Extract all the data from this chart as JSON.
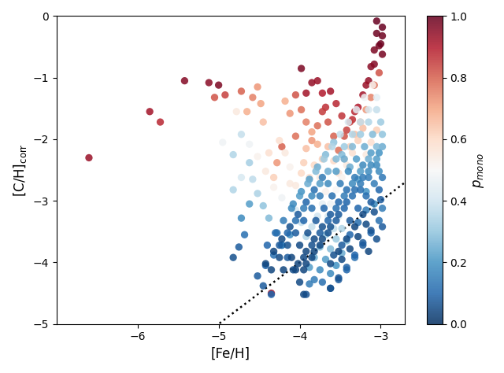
{
  "xlabel": "[Fe/H]",
  "ylabel": "[C/H]$_{\\mathrm{corr}}$",
  "colorbar_label": "$p_{mono}$",
  "xlim": [
    -7.0,
    -2.7
  ],
  "ylim": [
    -5.0,
    0.0
  ],
  "xticks": [
    -6,
    -5,
    -4,
    -3
  ],
  "yticks": [
    0,
    -1,
    -2,
    -3,
    -4,
    -5
  ],
  "dot_size": 45,
  "cmap": "RdBu_r",
  "vmin": 0.0,
  "vmax": 1.0,
  "seed": 42,
  "points": [
    [
      -6.6,
      -2.3,
      0.93
    ],
    [
      -5.85,
      -1.55,
      0.92
    ],
    [
      -5.72,
      -1.72,
      0.88
    ],
    [
      -5.42,
      -1.05,
      0.96
    ],
    [
      -5.12,
      -1.08,
      0.95
    ],
    [
      -5.05,
      -1.32,
      0.82
    ],
    [
      -5.0,
      -1.12,
      0.97
    ],
    [
      -4.92,
      -1.28,
      0.84
    ],
    [
      -4.78,
      -1.55,
      0.55
    ],
    [
      -4.72,
      -1.92,
      0.38
    ],
    [
      -4.95,
      -2.05,
      0.48
    ],
    [
      -4.82,
      -2.25,
      0.35
    ],
    [
      -4.62,
      -2.38,
      0.33
    ],
    [
      -4.58,
      -2.65,
      0.37
    ],
    [
      -4.52,
      -2.88,
      0.34
    ],
    [
      -4.45,
      -3.08,
      0.3
    ],
    [
      -4.38,
      -3.28,
      0.28
    ],
    [
      -4.28,
      -3.52,
      0.12
    ],
    [
      -4.22,
      -3.72,
      0.1
    ],
    [
      -4.15,
      -3.92,
      0.08
    ],
    [
      -4.08,
      -4.12,
      0.06
    ],
    [
      -4.0,
      -4.32,
      0.05
    ],
    [
      -3.92,
      -4.52,
      0.07
    ],
    [
      -4.68,
      -3.55,
      0.12
    ],
    [
      -4.75,
      -3.75,
      0.08
    ],
    [
      -4.82,
      -3.92,
      0.06
    ],
    [
      -4.05,
      -1.95,
      0.78
    ],
    [
      -4.12,
      -1.58,
      0.72
    ],
    [
      -4.18,
      -1.38,
      0.68
    ],
    [
      -4.22,
      -2.12,
      0.8
    ],
    [
      -4.28,
      -2.38,
      0.72
    ],
    [
      -4.32,
      -2.62,
      0.62
    ],
    [
      -4.38,
      -2.22,
      0.58
    ],
    [
      -4.45,
      -1.72,
      0.65
    ],
    [
      -4.48,
      -1.42,
      0.7
    ],
    [
      -4.52,
      -1.15,
      0.72
    ],
    [
      -4.58,
      -1.32,
      0.75
    ],
    [
      -4.65,
      -1.55,
      0.68
    ],
    [
      -4.72,
      -1.22,
      0.8
    ],
    [
      -4.12,
      -2.72,
      0.55
    ],
    [
      -4.22,
      -2.95,
      0.48
    ],
    [
      -4.32,
      -2.78,
      0.52
    ],
    [
      -4.42,
      -2.52,
      0.55
    ],
    [
      -4.52,
      -2.28,
      0.52
    ],
    [
      -4.62,
      -2.08,
      0.48
    ],
    [
      -4.72,
      -2.62,
      0.42
    ],
    [
      -4.82,
      -2.82,
      0.35
    ],
    [
      -4.62,
      -3.05,
      0.22
    ],
    [
      -4.72,
      -3.28,
      0.18
    ],
    [
      -3.98,
      -0.85,
      0.97
    ],
    [
      -3.92,
      -1.25,
      0.92
    ],
    [
      -3.85,
      -1.08,
      0.94
    ],
    [
      -3.78,
      -1.05,
      0.93
    ],
    [
      -3.72,
      -1.25,
      0.9
    ],
    [
      -3.68,
      -1.48,
      0.87
    ],
    [
      -3.62,
      -1.22,
      0.92
    ],
    [
      -3.55,
      -1.42,
      0.88
    ],
    [
      -3.48,
      -1.62,
      0.86
    ],
    [
      -3.42,
      -1.85,
      0.84
    ],
    [
      -3.35,
      -1.68,
      0.87
    ],
    [
      -3.28,
      -1.48,
      0.9
    ],
    [
      -3.22,
      -1.28,
      0.92
    ],
    [
      -3.15,
      -1.05,
      0.94
    ],
    [
      -3.08,
      -0.78,
      0.96
    ],
    [
      -3.02,
      -0.48,
      0.98
    ],
    [
      -2.98,
      -0.18,
      1.0
    ],
    [
      -3.05,
      -0.28,
      0.99
    ],
    [
      -3.08,
      -0.55,
      0.97
    ],
    [
      -3.12,
      -0.82,
      0.95
    ],
    [
      -3.18,
      -1.12,
      0.93
    ],
    [
      -2.98,
      -0.62,
      0.98
    ],
    [
      -3.0,
      -0.45,
      0.99
    ],
    [
      -3.05,
      -0.08,
      1.0
    ],
    [
      -2.98,
      -0.32,
      0.99
    ],
    [
      -3.32,
      -1.55,
      0.88
    ],
    [
      -3.38,
      -1.72,
      0.85
    ],
    [
      -3.45,
      -1.95,
      0.82
    ],
    [
      -3.52,
      -2.18,
      0.78
    ],
    [
      -3.58,
      -1.95,
      0.8
    ],
    [
      -3.65,
      -1.72,
      0.82
    ],
    [
      -3.72,
      -1.55,
      0.85
    ],
    [
      -3.78,
      -1.78,
      0.78
    ],
    [
      -3.85,
      -2.02,
      0.72
    ],
    [
      -3.92,
      -1.72,
      0.75
    ],
    [
      -3.98,
      -1.52,
      0.78
    ],
    [
      -4.05,
      -1.28,
      0.82
    ],
    [
      -3.92,
      -2.15,
      0.65
    ],
    [
      -3.85,
      -1.88,
      0.7
    ],
    [
      -3.78,
      -2.08,
      0.68
    ],
    [
      -3.72,
      -2.32,
      0.62
    ],
    [
      -3.65,
      -2.12,
      0.65
    ],
    [
      -3.58,
      -2.35,
      0.6
    ],
    [
      -3.52,
      -2.55,
      0.58
    ],
    [
      -3.45,
      -2.32,
      0.6
    ],
    [
      -3.38,
      -2.12,
      0.62
    ],
    [
      -3.32,
      -1.92,
      0.65
    ],
    [
      -3.25,
      -1.72,
      0.68
    ],
    [
      -3.18,
      -1.52,
      0.72
    ],
    [
      -3.12,
      -1.32,
      0.75
    ],
    [
      -3.08,
      -1.12,
      0.78
    ],
    [
      -3.02,
      -0.92,
      0.82
    ],
    [
      -3.98,
      -2.55,
      0.6
    ],
    [
      -4.05,
      -2.75,
      0.55
    ],
    [
      -4.12,
      -2.45,
      0.52
    ],
    [
      -4.18,
      -2.22,
      0.55
    ],
    [
      -4.25,
      -2.02,
      0.58
    ],
    [
      -3.95,
      -2.38,
      0.62
    ],
    [
      -3.88,
      -2.62,
      0.58
    ],
    [
      -3.82,
      -2.42,
      0.6
    ],
    [
      -3.75,
      -2.62,
      0.55
    ],
    [
      -3.68,
      -2.85,
      0.52
    ],
    [
      -3.62,
      -3.05,
      0.48
    ],
    [
      -3.55,
      -2.82,
      0.5
    ],
    [
      -3.48,
      -2.62,
      0.52
    ],
    [
      -3.42,
      -2.42,
      0.55
    ],
    [
      -3.35,
      -2.22,
      0.58
    ],
    [
      -3.28,
      -2.02,
      0.62
    ],
    [
      -3.22,
      -1.82,
      0.65
    ],
    [
      -3.72,
      -3.05,
      0.45
    ],
    [
      -3.65,
      -3.25,
      0.42
    ],
    [
      -3.58,
      -3.45,
      0.38
    ],
    [
      -3.52,
      -3.25,
      0.42
    ],
    [
      -3.45,
      -3.05,
      0.45
    ],
    [
      -3.38,
      -2.85,
      0.48
    ],
    [
      -3.32,
      -2.65,
      0.5
    ],
    [
      -3.25,
      -2.45,
      0.52
    ],
    [
      -3.18,
      -2.25,
      0.55
    ],
    [
      -3.12,
      -2.05,
      0.58
    ],
    [
      -3.05,
      -1.85,
      0.62
    ],
    [
      -3.78,
      -3.25,
      0.4
    ],
    [
      -3.85,
      -3.42,
      0.38
    ],
    [
      -3.92,
      -3.58,
      0.35
    ],
    [
      -3.98,
      -3.35,
      0.38
    ],
    [
      -4.05,
      -3.15,
      0.42
    ],
    [
      -3.48,
      -3.45,
      0.35
    ],
    [
      -3.55,
      -3.62,
      0.32
    ],
    [
      -3.62,
      -3.78,
      0.28
    ],
    [
      -3.68,
      -3.55,
      0.32
    ],
    [
      -3.75,
      -3.75,
      0.28
    ],
    [
      -3.82,
      -3.92,
      0.25
    ],
    [
      -3.88,
      -4.08,
      0.22
    ],
    [
      -3.42,
      -3.65,
      0.3
    ],
    [
      -3.48,
      -3.85,
      0.25
    ],
    [
      -3.55,
      -4.05,
      0.2
    ],
    [
      -3.62,
      -4.18,
      0.18
    ],
    [
      -3.68,
      -3.95,
      0.22
    ],
    [
      -3.75,
      -4.12,
      0.18
    ],
    [
      -3.82,
      -4.28,
      0.15
    ],
    [
      -4.12,
      -3.55,
      0.18
    ],
    [
      -4.22,
      -3.72,
      0.15
    ],
    [
      -4.32,
      -3.88,
      0.12
    ],
    [
      -4.42,
      -4.05,
      0.1
    ],
    [
      -4.52,
      -4.22,
      0.08
    ],
    [
      -4.35,
      -4.5,
      0.92
    ],
    [
      -3.95,
      -4.52,
      0.05
    ],
    [
      -3.88,
      -4.35,
      0.15
    ],
    [
      -3.72,
      -4.32,
      0.12
    ],
    [
      -3.62,
      -4.42,
      0.08
    ],
    [
      -3.52,
      -4.28,
      0.08
    ],
    [
      -3.42,
      -4.12,
      0.1
    ],
    [
      -3.32,
      -3.92,
      0.12
    ],
    [
      -3.22,
      -3.72,
      0.08
    ],
    [
      -3.12,
      -3.52,
      0.1
    ],
    [
      -3.02,
      -3.32,
      0.12
    ],
    [
      -2.98,
      -3.12,
      0.15
    ],
    [
      -3.08,
      -3.05,
      0.18
    ],
    [
      -3.18,
      -2.85,
      0.2
    ],
    [
      -3.28,
      -2.65,
      0.22
    ],
    [
      -3.38,
      -2.45,
      0.25
    ],
    [
      -3.48,
      -2.25,
      0.28
    ],
    [
      -3.58,
      -2.05,
      0.3
    ],
    [
      -3.68,
      -2.25,
      0.28
    ],
    [
      -3.78,
      -2.45,
      0.25
    ],
    [
      -3.88,
      -2.65,
      0.22
    ],
    [
      -3.98,
      -2.85,
      0.2
    ],
    [
      -4.08,
      -3.05,
      0.18
    ],
    [
      -3.18,
      -3.15,
      0.15
    ],
    [
      -3.28,
      -3.35,
      0.12
    ],
    [
      -3.38,
      -3.55,
      0.1
    ],
    [
      -3.48,
      -3.72,
      0.08
    ],
    [
      -3.58,
      -3.88,
      0.06
    ],
    [
      -3.02,
      -2.52,
      0.18
    ],
    [
      -3.08,
      -2.72,
      0.15
    ],
    [
      -3.18,
      -2.92,
      0.12
    ],
    [
      -3.28,
      -3.12,
      0.1
    ],
    [
      -3.38,
      -3.32,
      0.08
    ],
    [
      -3.02,
      -2.82,
      0.1
    ],
    [
      -3.12,
      -3.02,
      0.08
    ],
    [
      -3.22,
      -3.22,
      0.05
    ],
    [
      -3.32,
      -3.42,
      0.04
    ],
    [
      -3.42,
      -3.62,
      0.05
    ],
    [
      -3.52,
      -3.82,
      0.04
    ],
    [
      -3.62,
      -4.02,
      0.05
    ],
    [
      -3.0,
      -2.98,
      0.08
    ],
    [
      -3.08,
      -3.18,
      0.06
    ],
    [
      -3.18,
      -3.38,
      0.05
    ],
    [
      -3.28,
      -3.58,
      0.04
    ],
    [
      -3.38,
      -3.78,
      0.04
    ],
    [
      -3.48,
      -3.95,
      0.05
    ],
    [
      -2.98,
      -2.62,
      0.14
    ],
    [
      -3.05,
      -2.42,
      0.18
    ],
    [
      -3.15,
      -2.62,
      0.15
    ],
    [
      -3.25,
      -2.82,
      0.12
    ],
    [
      -2.98,
      -3.42,
      0.08
    ],
    [
      -3.05,
      -3.62,
      0.06
    ],
    [
      -3.15,
      -3.82,
      0.04
    ],
    [
      -3.12,
      -2.22,
      0.22
    ],
    [
      -3.22,
      -2.42,
      0.18
    ],
    [
      -3.32,
      -2.62,
      0.15
    ],
    [
      -3.42,
      -2.82,
      0.12
    ],
    [
      -3.52,
      -3.02,
      0.1
    ],
    [
      -3.62,
      -3.22,
      0.08
    ],
    [
      -3.72,
      -3.42,
      0.06
    ],
    [
      -3.82,
      -3.62,
      0.05
    ],
    [
      -3.92,
      -3.82,
      0.04
    ],
    [
      -4.02,
      -4.02,
      0.04
    ],
    [
      -2.98,
      -2.12,
      0.25
    ],
    [
      -3.05,
      -2.32,
      0.22
    ],
    [
      -3.15,
      -2.52,
      0.18
    ],
    [
      -3.25,
      -2.72,
      0.15
    ],
    [
      -3.35,
      -2.92,
      0.12
    ],
    [
      -3.45,
      -3.12,
      0.1
    ],
    [
      -3.55,
      -3.32,
      0.08
    ],
    [
      -3.65,
      -3.52,
      0.06
    ],
    [
      -3.75,
      -3.72,
      0.05
    ],
    [
      -3.85,
      -3.92,
      0.04
    ],
    [
      -3.95,
      -4.12,
      0.04
    ],
    [
      -2.98,
      -1.92,
      0.3
    ],
    [
      -3.05,
      -2.12,
      0.28
    ],
    [
      -3.15,
      -2.32,
      0.25
    ],
    [
      -3.25,
      -2.52,
      0.22
    ],
    [
      -3.35,
      -2.72,
      0.18
    ],
    [
      -3.45,
      -2.92,
      0.15
    ],
    [
      -3.55,
      -3.12,
      0.12
    ],
    [
      -3.65,
      -3.32,
      0.1
    ],
    [
      -3.75,
      -3.52,
      0.08
    ],
    [
      -3.85,
      -3.72,
      0.06
    ],
    [
      -3.95,
      -3.92,
      0.05
    ],
    [
      -4.05,
      -4.12,
      0.04
    ],
    [
      -3.72,
      -2.62,
      0.15
    ],
    [
      -3.82,
      -2.82,
      0.12
    ],
    [
      -3.92,
      -3.02,
      0.1
    ],
    [
      -4.02,
      -3.22,
      0.08
    ],
    [
      -4.12,
      -3.42,
      0.06
    ],
    [
      -4.22,
      -3.62,
      0.05
    ],
    [
      -4.32,
      -3.82,
      0.04
    ],
    [
      -4.42,
      -4.02,
      0.04
    ],
    [
      -3.02,
      -2.22,
      0.2
    ],
    [
      -3.12,
      -2.42,
      0.18
    ],
    [
      -3.22,
      -2.62,
      0.15
    ],
    [
      -3.32,
      -2.82,
      0.12
    ],
    [
      -3.42,
      -3.02,
      0.1
    ],
    [
      -3.52,
      -3.22,
      0.08
    ],
    [
      -3.62,
      -3.42,
      0.06
    ],
    [
      -3.72,
      -3.62,
      0.05
    ],
    [
      -3.82,
      -3.82,
      0.04
    ],
    [
      -3.92,
      -4.02,
      0.04
    ],
    [
      -3.0,
      -1.72,
      0.32
    ],
    [
      -3.1,
      -1.92,
      0.28
    ],
    [
      -3.2,
      -2.12,
      0.25
    ],
    [
      -3.3,
      -2.32,
      0.22
    ],
    [
      -3.4,
      -2.52,
      0.18
    ],
    [
      -3.5,
      -2.72,
      0.15
    ],
    [
      -3.6,
      -2.92,
      0.12
    ],
    [
      -3.7,
      -3.12,
      0.1
    ],
    [
      -3.8,
      -3.32,
      0.08
    ],
    [
      -3.9,
      -3.52,
      0.06
    ],
    [
      -4.0,
      -3.72,
      0.05
    ],
    [
      -4.1,
      -3.92,
      0.04
    ],
    [
      -4.2,
      -4.12,
      0.04
    ],
    [
      -3.05,
      -1.52,
      0.38
    ],
    [
      -3.15,
      -1.72,
      0.35
    ],
    [
      -3.25,
      -1.92,
      0.32
    ],
    [
      -3.35,
      -2.12,
      0.28
    ],
    [
      -3.45,
      -2.32,
      0.25
    ],
    [
      -3.55,
      -2.52,
      0.22
    ],
    [
      -3.65,
      -2.72,
      0.18
    ],
    [
      -3.75,
      -2.92,
      0.15
    ],
    [
      -3.85,
      -3.12,
      0.12
    ],
    [
      -3.95,
      -3.32,
      0.1
    ],
    [
      -4.05,
      -3.52,
      0.08
    ],
    [
      -4.15,
      -3.72,
      0.06
    ],
    [
      -4.25,
      -3.92,
      0.05
    ],
    [
      -4.35,
      -4.12,
      0.04
    ],
    [
      -3.05,
      -1.32,
      0.45
    ],
    [
      -3.15,
      -1.52,
      0.42
    ],
    [
      -3.25,
      -1.72,
      0.38
    ],
    [
      -3.35,
      -1.92,
      0.35
    ],
    [
      -3.45,
      -2.12,
      0.32
    ],
    [
      -3.55,
      -2.32,
      0.28
    ],
    [
      -3.65,
      -2.52,
      0.25
    ],
    [
      -3.75,
      -2.72,
      0.22
    ],
    [
      -3.85,
      -2.92,
      0.18
    ],
    [
      -3.95,
      -3.12,
      0.15
    ],
    [
      -4.05,
      -3.32,
      0.12
    ],
    [
      -4.15,
      -3.52,
      0.1
    ],
    [
      -4.25,
      -3.72,
      0.08
    ],
    [
      -3.1,
      -1.12,
      0.52
    ],
    [
      -3.2,
      -1.32,
      0.48
    ],
    [
      -3.3,
      -1.52,
      0.45
    ],
    [
      -3.4,
      -1.72,
      0.42
    ],
    [
      -3.5,
      -1.92,
      0.38
    ],
    [
      -3.6,
      -2.12,
      0.35
    ],
    [
      -3.7,
      -2.32,
      0.32
    ],
    [
      -3.8,
      -2.52,
      0.28
    ],
    [
      -3.9,
      -2.72,
      0.25
    ],
    [
      -4.0,
      -2.92,
      0.22
    ],
    [
      -4.1,
      -3.12,
      0.18
    ],
    [
      -4.2,
      -3.32,
      0.15
    ],
    [
      -4.3,
      -3.52,
      0.12
    ],
    [
      -4.4,
      -3.72,
      0.1
    ],
    [
      -4.35,
      -4.52,
      0.1
    ],
    [
      -4.45,
      -4.38,
      0.08
    ],
    [
      -3.62,
      -4.42,
      0.06
    ],
    [
      -3.52,
      -4.25,
      0.07
    ],
    [
      -3.42,
      -4.08,
      0.09
    ],
    [
      -3.32,
      -3.88,
      0.1
    ],
    [
      -3.22,
      -3.68,
      0.08
    ],
    [
      -3.12,
      -3.48,
      0.07
    ]
  ]
}
